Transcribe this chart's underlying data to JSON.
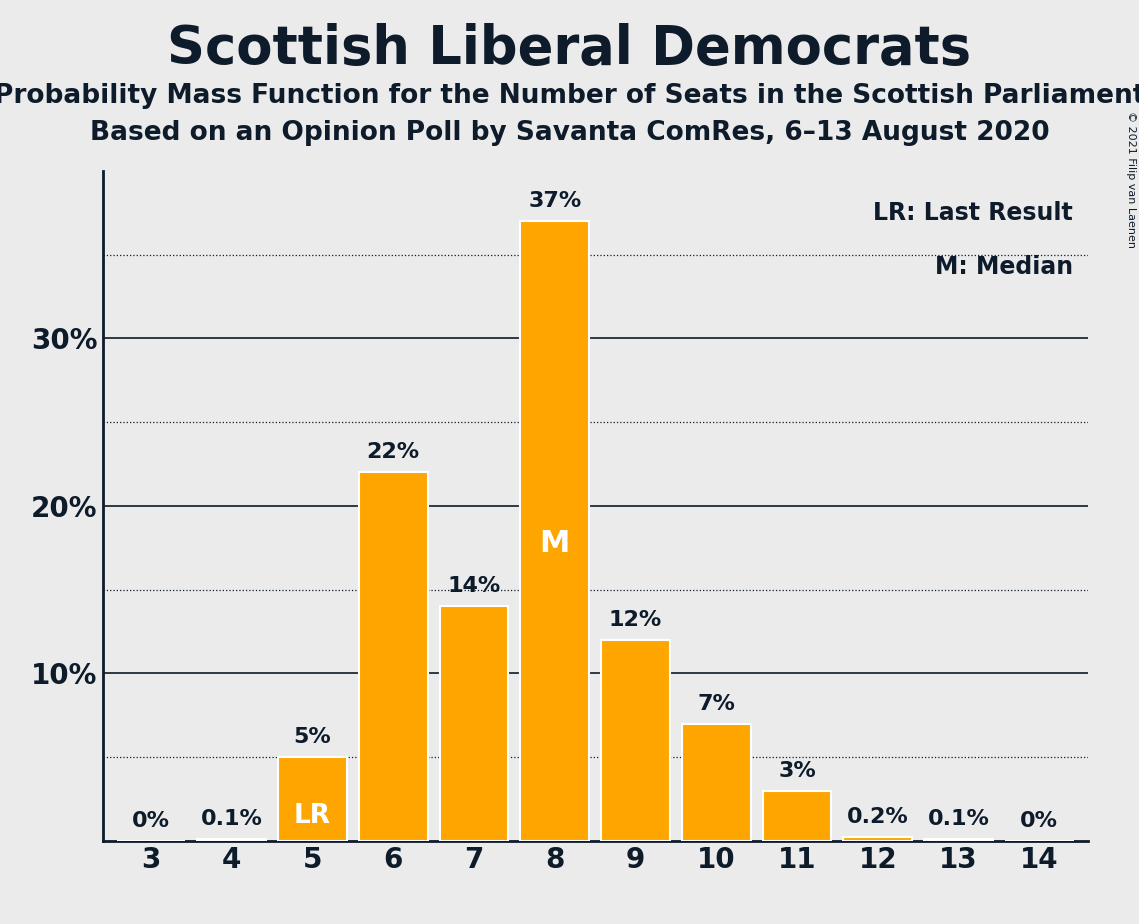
{
  "title": "Scottish Liberal Democrats",
  "subtitle1": "Probability Mass Function for the Number of Seats in the Scottish Parliament",
  "subtitle2": "Based on an Opinion Poll by Savanta ComRes, 6–13 August 2020",
  "copyright": "© 2021 Filip van Laenen",
  "seats": [
    3,
    4,
    5,
    6,
    7,
    8,
    9,
    10,
    11,
    12,
    13,
    14
  ],
  "probabilities": [
    0.0,
    0.1,
    5.0,
    22.0,
    14.0,
    37.0,
    12.0,
    7.0,
    3.0,
    0.2,
    0.1,
    0.0
  ],
  "bar_color": "#FFA500",
  "bar_edge_color": "#FFFFFF",
  "last_result_seat": 5,
  "median_seat": 8,
  "ylim": [
    0,
    40
  ],
  "yticks": [
    10,
    20,
    30
  ],
  "ytick_labels": [
    "10%",
    "20%",
    "30%"
  ],
  "dotted_grid_lines": [
    5,
    15,
    25,
    35
  ],
  "solid_grid_lines": [
    10,
    20,
    30
  ],
  "background_color": "#EBEBEB",
  "text_color": "#0D1B2A",
  "title_fontsize": 38,
  "subtitle_fontsize": 19,
  "legend_text": [
    "LR: Last Result",
    "M: Median"
  ],
  "bar_label_fontsize": 16,
  "axis_label_fontsize": 20,
  "bar_labels": [
    "0%",
    "0.1%",
    "5%",
    "22%",
    "14%",
    "37%",
    "12%",
    "7%",
    "3%",
    "0.2%",
    "0.1%",
    "0%"
  ]
}
